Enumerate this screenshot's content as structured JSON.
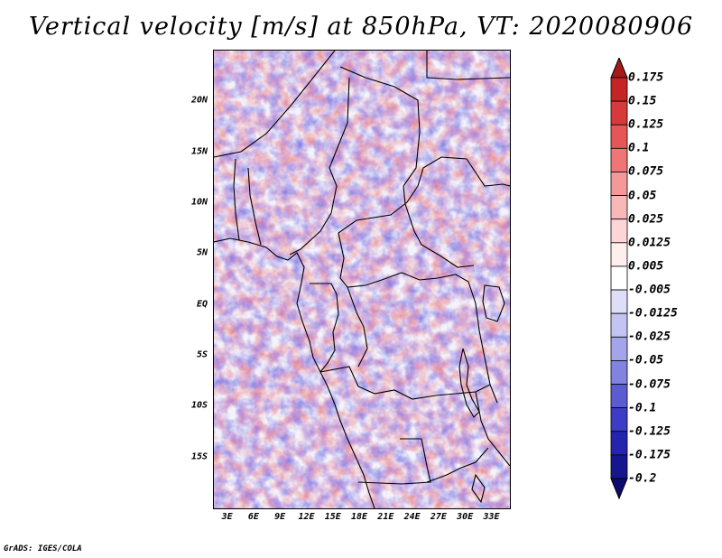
{
  "title": "Vertical velocity [m/s] at 850hPa, VT: 2020080906",
  "credit": "GrADS: IGES/COLA",
  "map": {
    "lat_labels": [
      "20N",
      "15N",
      "10N",
      "5N",
      "EQ",
      "5S",
      "10S",
      "15S"
    ],
    "lat_values": [
      20,
      15,
      10,
      5,
      0,
      -5,
      -10,
      -15
    ],
    "lon_labels": [
      "3E",
      "6E",
      "9E",
      "12E",
      "15E",
      "18E",
      "21E",
      "24E",
      "27E",
      "30E",
      "33E"
    ],
    "lon_values": [
      3,
      6,
      9,
      12,
      15,
      18,
      21,
      24,
      27,
      30,
      33
    ],
    "lon_range": [
      1.4,
      35.0
    ],
    "lat_range": [
      -20.0,
      25.0
    ]
  },
  "colorbar": {
    "labels": [
      "0.175",
      "0.15",
      "0.125",
      "0.1",
      "0.075",
      "0.05",
      "0.025",
      "0.0125",
      "0.005",
      "-0.005",
      "-0.0125",
      "-0.025",
      "-0.05",
      "-0.075",
      "-0.1",
      "-0.125",
      "-0.175",
      "-0.2"
    ],
    "colors": [
      "#a81818",
      "#c42424",
      "#d63a3a",
      "#e65656",
      "#ee7676",
      "#f49898",
      "#f8b8b8",
      "#fcd6d6",
      "#ffeeee",
      "#ffffff",
      "#dedef8",
      "#c4c4f2",
      "#a4a4ea",
      "#8282e0",
      "#5c5cd2",
      "#3c3cc4",
      "#2424ac",
      "#16168e",
      "#0c0c6c"
    ]
  }
}
